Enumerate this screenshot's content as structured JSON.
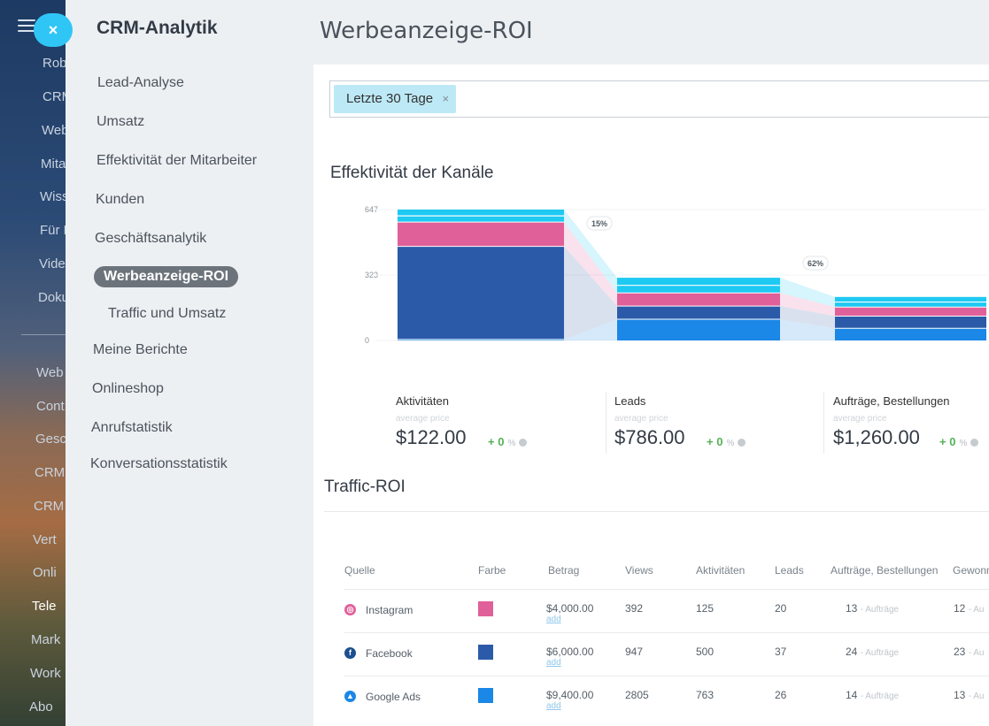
{
  "bg_app": {
    "close_glyph": "×",
    "items": [
      "Robo",
      "CRM",
      "Web",
      "Mita",
      "Wiss",
      "Für E",
      "Vide",
      "Doku",
      "Web",
      "Cont",
      "Gesc",
      "CRM",
      "CRM",
      "Vert",
      "Onli",
      "Tele",
      "Mark",
      "Work",
      "Abo"
    ]
  },
  "sidebar": {
    "title": "CRM-Analytik",
    "items": [
      {
        "label": "Lead-Analyse"
      },
      {
        "label": "Umsatz"
      },
      {
        "label": "Effektivität der Mitarbeiter"
      },
      {
        "label": "Kunden"
      },
      {
        "label": "Geschäftsanalytik"
      },
      {
        "label": "Werbeanzeige-ROI"
      },
      {
        "label": "Traffic und Umsatz"
      },
      {
        "label": "Meine Berichte"
      },
      {
        "label": "Onlineshop"
      },
      {
        "label": "Anrufstatistik"
      },
      {
        "label": "Konversationsstatistik"
      }
    ]
  },
  "main": {
    "title": "Werbeanzeige-ROI",
    "filter": {
      "chip_label": "Letzte 30 Tage",
      "chip_close": "×"
    },
    "chart_section_title": "Effektivität der Kanäle",
    "table_section_title": "Traffic-ROI"
  },
  "chart_data": {
    "type": "bar",
    "stacked": true,
    "y_ticks": [
      "647",
      "323",
      "0"
    ],
    "ylim": [
      0,
      647
    ],
    "categories": [
      "Aktivitäten",
      "Leads",
      "Aufträge, Bestellungen"
    ],
    "series": [
      {
        "color": "#1b87e6",
        "values": [
          5,
          105,
          60
        ]
      },
      {
        "color": "#2b5ba8",
        "values": [
          460,
          65,
          60
        ]
      },
      {
        "color": "#e0609a",
        "values": [
          120,
          65,
          45
        ]
      },
      {
        "color": "#1ec9f2",
        "values": [
          62,
          75,
          50
        ]
      }
    ],
    "conversion_labels": [
      "15%",
      "62%"
    ],
    "cards": [
      {
        "label": "Aktivitäten",
        "sub": "average price",
        "value": "$122.00",
        "change": "+ 0",
        "pct": "%"
      },
      {
        "label": "Leads",
        "sub": "average price",
        "value": "$786.00",
        "change": "+ 0",
        "pct": "%"
      },
      {
        "label": "Aufträge, Bestellungen",
        "sub": "average price",
        "value": "$1,260.00",
        "change": "+ 0",
        "pct": "%"
      }
    ]
  },
  "table": {
    "headers": [
      "Quelle",
      "Farbe",
      "Betrag",
      "Views",
      "Aktivitäten",
      "Leads",
      "Aufträge, Bestellungen",
      "Gewonn"
    ],
    "rows": [
      {
        "source": "Instagram",
        "icon": "instagram-icon",
        "icon_glyph": "◎",
        "color": "#e0609a",
        "amount": "$4,000.00",
        "add": "add",
        "views": "392",
        "activities": "125",
        "leads": "20",
        "orders": "13",
        "orders_unit": "- Aufträge",
        "won": "12",
        "won_unit": "- Au"
      },
      {
        "source": "Facebook",
        "icon": "facebook-icon",
        "icon_glyph": "f",
        "color": "#2b5ba8",
        "amount": "$6,000.00",
        "add": "add",
        "views": "947",
        "activities": "500",
        "leads": "37",
        "orders": "24",
        "orders_unit": "- Aufträge",
        "won": "23",
        "won_unit": "- Au"
      },
      {
        "source": "Google Ads",
        "icon": "google-ads-icon",
        "icon_glyph": "▲",
        "color": "#1b87e6",
        "amount": "$9,400.00",
        "add": "add",
        "views": "2805",
        "activities": "763",
        "leads": "26",
        "orders": "14",
        "orders_unit": "- Aufträge",
        "won": "13",
        "won_unit": "- Au"
      }
    ]
  }
}
